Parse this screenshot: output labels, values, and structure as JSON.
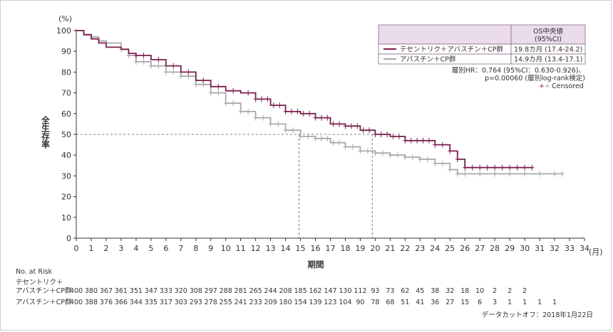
{
  "chart_data": {
    "type": "line",
    "title": "",
    "xlabel": "期間",
    "x_unit": "(月)",
    "ylabel": "全生存率",
    "y_unit": "(%)",
    "xlim": [
      0,
      34
    ],
    "ylim": [
      0,
      100
    ],
    "x_ticks": [
      0,
      1,
      2,
      3,
      4,
      5,
      6,
      7,
      8,
      9,
      10,
      11,
      12,
      13,
      14,
      15,
      16,
      17,
      18,
      19,
      20,
      21,
      22,
      23,
      24,
      25,
      26,
      27,
      28,
      29,
      30,
      31,
      32,
      33,
      34
    ],
    "y_ticks": [
      0,
      10,
      20,
      30,
      40,
      50,
      60,
      70,
      80,
      90,
      100
    ],
    "median_reference": {
      "y": 50,
      "x": [
        14.9,
        19.8
      ]
    },
    "series": [
      {
        "name": "テセントリク＋アバスチン＋CP群",
        "color": "#7b1e4e",
        "x": [
          0,
          0.5,
          1,
          1.5,
          2,
          3,
          3.5,
          4,
          5,
          6,
          7,
          8,
          9,
          10,
          11,
          12,
          13,
          14,
          15,
          16,
          17,
          18,
          19,
          20,
          21,
          22,
          23,
          24,
          25,
          25.5,
          26,
          27,
          28,
          29,
          30,
          30.5
        ],
        "y": [
          100,
          98,
          96,
          94,
          92,
          91,
          89,
          88,
          86,
          83,
          80,
          76,
          73,
          71,
          70,
          67,
          64,
          61,
          60,
          58,
          55,
          54,
          52,
          50,
          49,
          47,
          47,
          45,
          42,
          38,
          34,
          34,
          34,
          34,
          34,
          34
        ],
        "censor_x": [
          4.0,
          4.5,
          5.5,
          6.5,
          7.5,
          8.5,
          9.5,
          10.5,
          11.5,
          12.0,
          12.4,
          12.8,
          13.2,
          13.6,
          14.0,
          14.4,
          14.8,
          15.2,
          15.6,
          16.0,
          16.4,
          16.8,
          17.2,
          17.6,
          18.0,
          18.4,
          18.8,
          19.2,
          19.6,
          20.0,
          20.4,
          20.8,
          21.2,
          21.6,
          22.0,
          22.4,
          22.8,
          23.2,
          23.6,
          24.0,
          24.5,
          25.0,
          25.5,
          26.0,
          26.5,
          27.0,
          27.5,
          28.0,
          28.5,
          29.0,
          29.5,
          30.0,
          30.5
        ]
      },
      {
        "name": "アバスチン＋CP群",
        "color": "#a8a8a8",
        "x": [
          0,
          0.5,
          1,
          1.5,
          2,
          3,
          3.5,
          4,
          5,
          6,
          7,
          8,
          9,
          10,
          11,
          12,
          13,
          14,
          15,
          16,
          17,
          18,
          19,
          20,
          21,
          22,
          23,
          24,
          25,
          25.5,
          26,
          27,
          28,
          29,
          30,
          31,
          32,
          32.5
        ],
        "y": [
          100,
          98,
          97,
          95,
          94,
          91,
          88,
          85,
          83,
          80,
          78,
          74,
          70,
          65,
          61,
          58,
          55,
          52,
          49,
          48,
          46,
          44,
          42,
          41,
          40,
          39,
          38,
          36,
          33,
          31,
          31,
          31,
          31,
          31,
          31,
          31,
          31,
          31
        ],
        "censor_x": [
          3.0,
          3.5,
          4.0,
          4.5,
          5.0,
          5.5,
          6.0,
          6.5,
          7.0,
          7.5,
          8.0,
          8.5,
          9.0,
          9.5,
          10.0,
          10.5,
          11.0,
          11.5,
          12.0,
          12.5,
          13.0,
          13.5,
          14.0,
          14.5,
          15.0,
          15.5,
          16.0,
          16.4,
          16.8,
          17.2,
          17.6,
          18.0,
          18.5,
          19.0,
          19.5,
          20.0,
          20.5,
          21.0,
          21.5,
          22.0,
          22.5,
          23.0,
          23.5,
          24.0,
          24.5,
          25.0,
          25.5,
          26.0,
          27.0,
          28.0,
          29.0,
          30.0,
          31.0,
          32.0,
          32.5
        ]
      }
    ],
    "legend": {
      "placement": "top-right",
      "header": "OS中央値",
      "header_sub": "(95%CI)",
      "rows": [
        {
          "label": "テセントリク＋アバスチン＋CP群",
          "value": "19.8カ月 (17.4-24.2)"
        },
        {
          "label": "アバスチン＋CP群",
          "value": "14.9カ月 (13.4-17.1)"
        }
      ],
      "hr_line1": "層別HR：0.764 (95%CI：0.630-0.926)、",
      "hr_line2": "p=0.00060 (層別log-rank検定)",
      "censored_label": "Censored",
      "censored_symbol": "+"
    },
    "risk_table": {
      "title": "No. at Risk",
      "label_line1": "テセントリク＋",
      "label_line2": "アバスチン＋CP群",
      "label_comparator": "アバスチン＋CP群",
      "x_positions": [
        0,
        1,
        2,
        3,
        4,
        5,
        6,
        7,
        8,
        9,
        10,
        11,
        12,
        13,
        14,
        15,
        16,
        17,
        18,
        19,
        20,
        21,
        22,
        23,
        24,
        25,
        26,
        27,
        28,
        29,
        30,
        31,
        32
      ],
      "atezo": [
        "400",
        "380",
        "367",
        "361",
        "351",
        "347",
        "333",
        "320",
        "308",
        "297",
        "288",
        "281",
        "265",
        "244",
        "208",
        "185",
        "162",
        "147",
        "130",
        "112",
        "93",
        "73",
        "62",
        "45",
        "38",
        "32",
        "18",
        "10",
        "2",
        "2",
        "2",
        "",
        ""
      ],
      "control": [
        "400",
        "388",
        "376",
        "366",
        "344",
        "335",
        "317",
        "303",
        "293",
        "278",
        "255",
        "241",
        "233",
        "209",
        "180",
        "154",
        "139",
        "123",
        "104",
        "90",
        "78",
        "68",
        "51",
        "41",
        "36",
        "27",
        "15",
        "6",
        "3",
        "1",
        "1",
        "1",
        "1"
      ]
    },
    "footnote": "データカットオフ：2018年1月22日"
  }
}
